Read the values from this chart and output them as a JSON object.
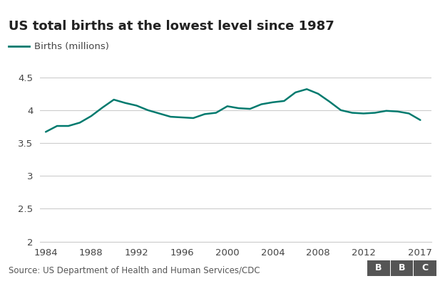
{
  "title": "US total births at the lowest level since 1987",
  "legend_label": "Births (millions)",
  "source_text": "Source: US Department of Health and Human Services/CDC",
  "line_color": "#007a6e",
  "background_color": "#ffffff",
  "ylim": [
    2.0,
    4.65
  ],
  "yticks": [
    2.0,
    2.5,
    3.0,
    3.5,
    4.0,
    4.5
  ],
  "xtick_labels": [
    1984,
    1988,
    1992,
    1996,
    2000,
    2004,
    2008,
    2012,
    2017
  ],
  "years": [
    1984,
    1985,
    1986,
    1987,
    1988,
    1989,
    1990,
    1991,
    1992,
    1993,
    1994,
    1995,
    1996,
    1997,
    1998,
    1999,
    2000,
    2001,
    2002,
    2003,
    2004,
    2005,
    2006,
    2007,
    2008,
    2009,
    2010,
    2011,
    2012,
    2013,
    2014,
    2015,
    2016,
    2017
  ],
  "births": [
    3.67,
    3.76,
    3.76,
    3.81,
    3.91,
    4.04,
    4.16,
    4.11,
    4.07,
    4.0,
    3.95,
    3.9,
    3.89,
    3.88,
    3.94,
    3.96,
    4.06,
    4.03,
    4.02,
    4.09,
    4.12,
    4.14,
    4.27,
    4.32,
    4.25,
    4.13,
    4.0,
    3.96,
    3.95,
    3.96,
    3.99,
    3.98,
    3.95,
    3.85
  ],
  "line_width": 1.8,
  "title_fontsize": 13,
  "legend_fontsize": 9.5,
  "tick_fontsize": 9.5,
  "source_fontsize": 8.5,
  "grid_color": "#cccccc",
  "xlim": [
    1983.5,
    2018
  ]
}
